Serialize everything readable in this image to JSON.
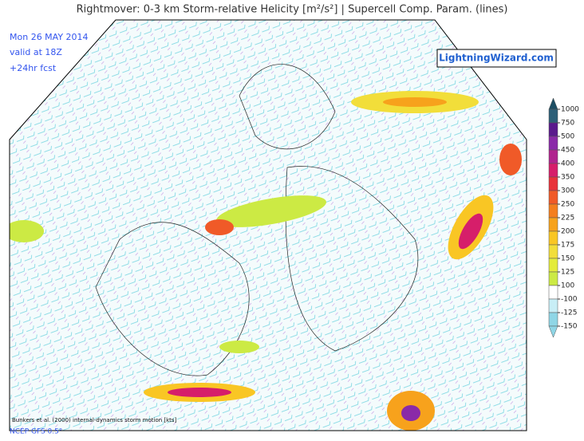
{
  "header": {
    "title": "Rightmover: 0-3 km Storm-relative Helicity [m²/s²] | Supercell Comp. Param. (lines)"
  },
  "info": {
    "date": "Mon 26 MAY 2014",
    "valid": "valid at 18Z",
    "forecast": "+24hr fcst"
  },
  "logo": "LightningWizard.com",
  "footer": {
    "note": "Bunkers et al. (2000) internal-dynamics storm motion [kts]",
    "model": "NCEP GFS 0.5°"
  },
  "legend": {
    "ticks": [
      1000,
      750,
      500,
      450,
      400,
      350,
      300,
      250,
      225,
      200,
      175,
      150,
      125,
      100,
      -100,
      -125,
      -150
    ],
    "colors": [
      "#1c4e63",
      "#2d5f78",
      "#5a1a8c",
      "#8a2aa8",
      "#b0248e",
      "#d61e6a",
      "#e8323a",
      "#f05a28",
      "#f47e1e",
      "#f7a21c",
      "#f9c624",
      "#f2de3a",
      "#e4ec3c",
      "#ccea44",
      "#ffffff",
      "#c8eef6",
      "#8fd6e6",
      "#8fd6e6"
    ]
  }
}
